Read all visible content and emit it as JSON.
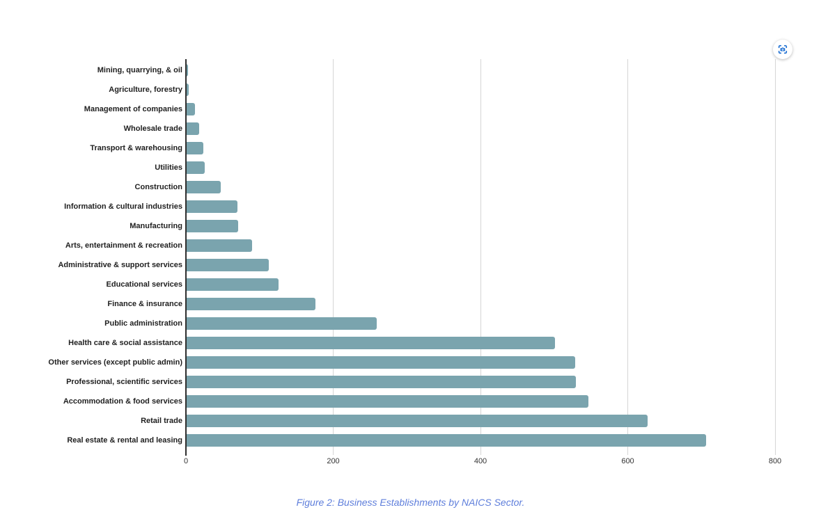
{
  "chart_data": {
    "type": "bar",
    "orientation": "horizontal",
    "title": "",
    "xlabel": "",
    "ylabel": "",
    "xlim": [
      0,
      800
    ],
    "x_ticks": [
      0,
      200,
      400,
      600,
      800
    ],
    "grid": "vertical-gridlines-on",
    "legend": "none",
    "categories": [
      "Mining, quarrying, & oil",
      "Agriculture, forestry",
      "Management of companies",
      "Wholesale trade",
      "Transport & warehousing",
      "Utilities",
      "Construction",
      "Information & cultural industries",
      "Manufacturing",
      "Arts, entertainment & recreation",
      "Administrative & support services",
      "Educational services",
      "Finance & insurance",
      "Public administration",
      "Health care & social assistance",
      "Other services (except public admin)",
      "Professional, scientific services",
      "Accommodation & food services",
      "Retail trade",
      "Real estate & rental and leasing"
    ],
    "values": [
      3,
      4,
      12,
      18,
      24,
      26,
      47,
      70,
      71,
      90,
      113,
      126,
      176,
      259,
      501,
      529,
      530,
      547,
      627,
      706
    ]
  },
  "caption": {
    "text": "Figure 2: Business Establishments by NAICS Sector."
  },
  "toolbar": {
    "capture_icon": "screenshot-capture-icon"
  },
  "colors": {
    "bar": "#7aa4ae",
    "gridline": "#d5d5d5",
    "axis": "#2e2e2e",
    "category_label": "#1f1f1f",
    "tick_label": "#333333",
    "caption_text": "#5e7edb",
    "icon_accent": "#1d6fd2"
  }
}
